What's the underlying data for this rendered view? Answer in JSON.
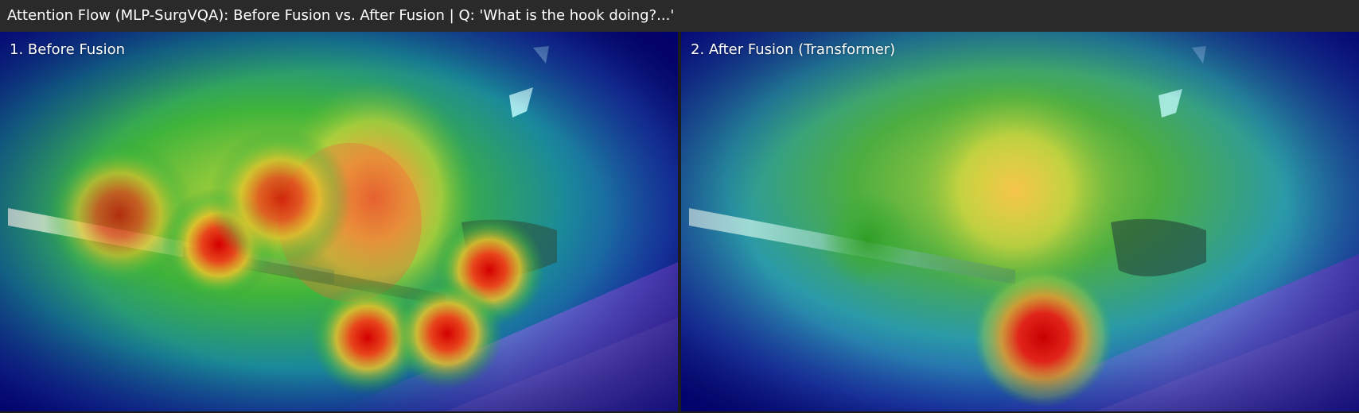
{
  "title": "Attention Flow (MLP-SurgVQA): Before Fusion vs. After Fusion | Q: 'What is the hook doing?...'",
  "panels": [
    {
      "label": "1. Before Fusion"
    },
    {
      "label": "2. After Fusion (Transformer)"
    }
  ]
}
